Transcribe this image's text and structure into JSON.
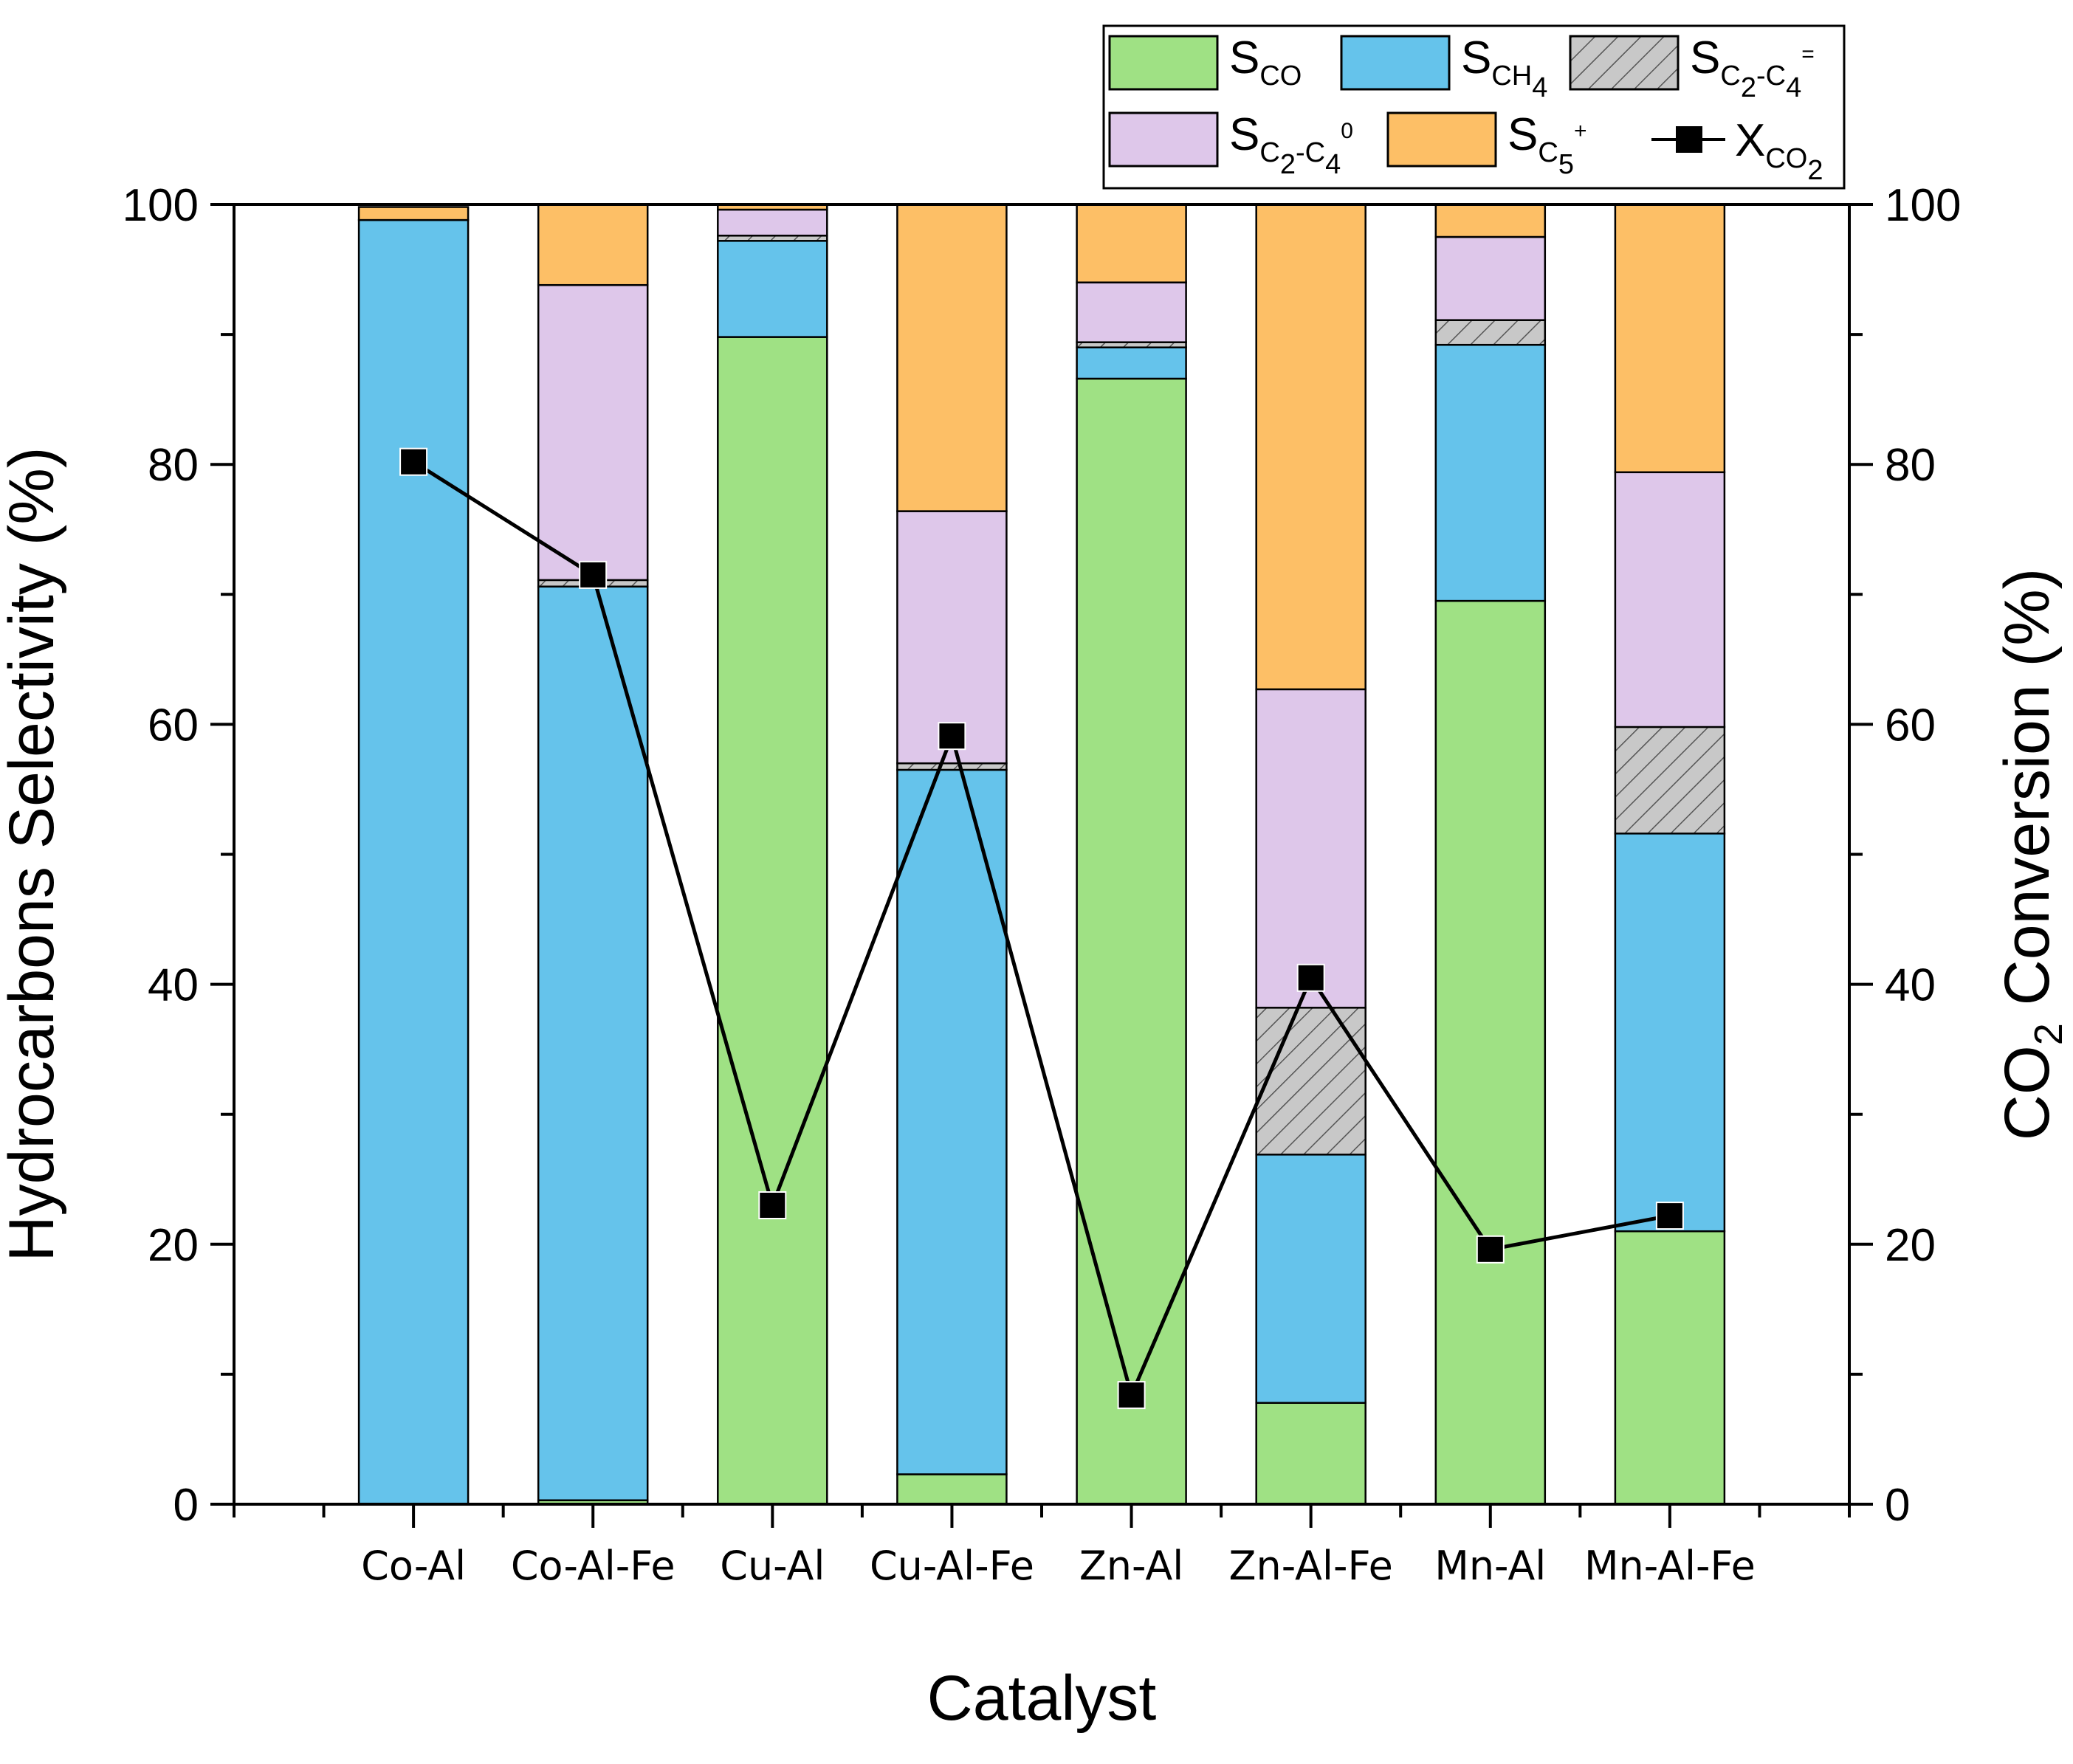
{
  "chart_data": {
    "type": "bar",
    "stacked": true,
    "title": "",
    "xlabel": "Catalyst",
    "ylabel": "Hydrocarbons Selectivity (%)",
    "y2label_main": "CO",
    "y2label_sub": "2",
    "y2label_rest": " Conversion (%)",
    "ylim": [
      0,
      100
    ],
    "y2lim": [
      0,
      100
    ],
    "yticks": [
      0,
      20,
      40,
      60,
      80,
      100
    ],
    "ytick_labels": [
      "0",
      "20",
      "40",
      "60",
      "80",
      "100"
    ],
    "y2ticks": [
      0,
      20,
      40,
      60,
      80,
      100
    ],
    "y2tick_labels": [
      "0",
      "20",
      "40",
      "60",
      "80",
      "100"
    ],
    "categories": [
      "Co-Al",
      "Co-Al-Fe",
      "Cu-Al",
      "Cu-Al-Fe",
      "Zn-Al",
      "Zn-Al-Fe",
      "Mn-Al",
      "Mn-Al-Fe"
    ],
    "series": [
      {
        "name": "S_CO",
        "label_main": "S",
        "label_sub": "CO",
        "label_sup": "",
        "color": "#9fe184",
        "pattern": "none",
        "values": [
          0,
          0.3,
          89.8,
          2.3,
          86.6,
          7.8,
          69.5,
          21.0
        ]
      },
      {
        "name": "S_CH4",
        "label_main": "S",
        "label_sub": "CH",
        "label_sub2": "4",
        "label_sup": "",
        "color": "#65c3eb",
        "pattern": "none",
        "values": [
          98.8,
          70.3,
          7.4,
          54.2,
          2.4,
          19.1,
          19.7,
          30.6
        ]
      },
      {
        "name": "S_C2-C4=",
        "label_main": "S",
        "label_sub": "C",
        "label_sub2": "2",
        "label_sub3": "-C",
        "label_sub4": "4",
        "label_sup": "=",
        "color": "#c8c8c8",
        "pattern": "hatch",
        "values": [
          0,
          0.5,
          0.4,
          0.5,
          0.4,
          11.3,
          1.9,
          8.2
        ]
      },
      {
        "name": "S_C2-C4 0",
        "label_main": "S",
        "label_sub": "C",
        "label_sub2": "2",
        "label_sub3": "-C",
        "label_sub4": "4",
        "label_sup": "0",
        "color": "#dec7ea",
        "pattern": "none",
        "values": [
          0,
          22.7,
          2.0,
          19.4,
          4.6,
          24.5,
          6.4,
          19.6
        ]
      },
      {
        "name": "S_C5+",
        "label_main": "S",
        "label_sub": "C",
        "label_sub2": "5",
        "label_sup": "+",
        "color": "#fdbf66",
        "pattern": "none",
        "values": [
          1.0,
          6.2,
          0.4,
          23.6,
          6.0,
          37.3,
          2.5,
          20.6
        ]
      }
    ],
    "line_series": {
      "name": "X_CO2",
      "label_main": "X",
      "label_sub": "CO",
      "label_sub2": "2",
      "axis": "right",
      "color": "#000000",
      "marker": "square",
      "values": [
        80.2,
        71.5,
        23.0,
        59.1,
        8.4,
        40.5,
        19.6,
        22.2
      ]
    },
    "legend_position": "top-right"
  }
}
